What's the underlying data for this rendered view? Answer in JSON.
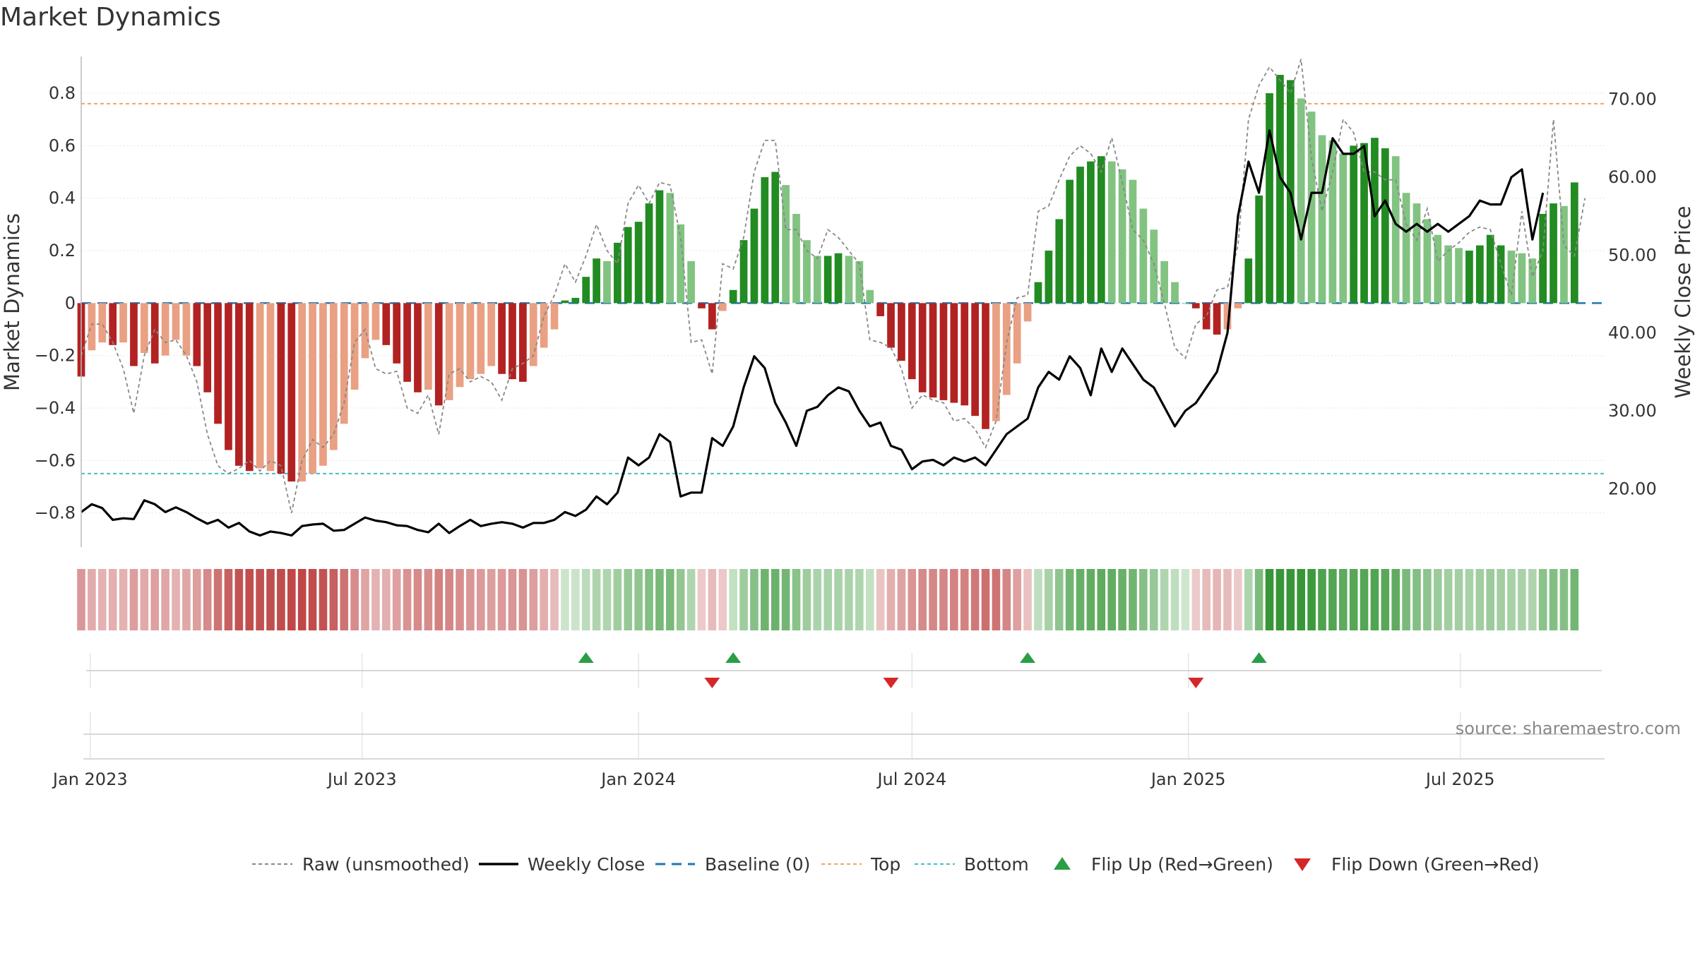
{
  "title": "Market Dynamics",
  "source": "source: sharemaestro.com",
  "colors": {
    "strong_red": "#b22222",
    "light_red": "#e9a083",
    "strong_green": "#228b22",
    "light_green": "#82c382",
    "price_line": "#000000",
    "raw_line": "#888888",
    "baseline": "#1f77b4",
    "top": "#f4a460",
    "bottom": "#40c0c0",
    "flip_up": "#2a9d45",
    "flip_down": "#d62728"
  },
  "legend": [
    {
      "key": "raw",
      "label": "Raw (unsmoothed)"
    },
    {
      "key": "close",
      "label": "Weekly Close"
    },
    {
      "key": "baseline",
      "label": "Baseline (0)"
    },
    {
      "key": "top",
      "label": "Top"
    },
    {
      "key": "bottom",
      "label": "Bottom"
    },
    {
      "key": "flip_up",
      "label": "Flip Up (Red→Green)"
    },
    {
      "key": "flip_down",
      "label": "Flip Down (Green→Red)"
    }
  ],
  "chart_data": {
    "type": "bar",
    "title": "Market Dynamics",
    "ylabel": "Market Dynamics",
    "y2label": "Weekly Close Price",
    "ylim": [
      -0.93,
      0.94
    ],
    "y2lim": [
      12.5,
      75.5
    ],
    "x_start": "2022-12-26",
    "x_interval": "weekly",
    "x_tick_labels": [
      "Jan 2023",
      "Jul 2023",
      "Jan 2024",
      "Jul 2024",
      "Jan 2025",
      "Jul 2025"
    ],
    "x_tick_dates": [
      "2023-01-01",
      "2023-07-01",
      "2024-01-01",
      "2024-07-01",
      "2025-01-01",
      "2025-07-01"
    ],
    "y_tick_labels": [
      "−0.8",
      "−0.6",
      "−0.4",
      "−0.2",
      "0",
      "0.2",
      "0.4",
      "0.6",
      "0.8"
    ],
    "y_ticks": [
      -0.8,
      -0.6,
      -0.4,
      -0.2,
      0,
      0.2,
      0.4,
      0.6,
      0.8
    ],
    "y2_tick_labels": [
      "20.00",
      "30.00",
      "40.00",
      "50.00",
      "60.00",
      "70.00"
    ],
    "y2_ticks": [
      20,
      30,
      40,
      50,
      60,
      70
    ],
    "top_level": 0.76,
    "bottom_level": -0.65,
    "grid": true,
    "legend_position": "bottom",
    "series": [
      {
        "name": "Market Dynamics",
        "kind": "bar",
        "values": [
          -0.28,
          -0.18,
          -0.15,
          -0.16,
          -0.15,
          -0.24,
          -0.19,
          -0.23,
          -0.2,
          -0.14,
          -0.2,
          -0.24,
          -0.34,
          -0.46,
          -0.56,
          -0.62,
          -0.64,
          -0.63,
          -0.64,
          -0.65,
          -0.68,
          -0.68,
          -0.65,
          -0.62,
          -0.56,
          -0.46,
          -0.33,
          -0.21,
          -0.14,
          -0.16,
          -0.23,
          -0.3,
          -0.34,
          -0.33,
          -0.39,
          -0.37,
          -0.32,
          -0.29,
          -0.27,
          -0.24,
          -0.27,
          -0.29,
          -0.3,
          -0.24,
          -0.17,
          -0.1,
          0.01,
          0.02,
          0.1,
          0.17,
          0.16,
          0.23,
          0.29,
          0.31,
          0.38,
          0.43,
          0.42,
          0.3,
          0.16,
          -0.02,
          -0.1,
          -0.03,
          0.05,
          0.24,
          0.36,
          0.48,
          0.5,
          0.45,
          0.34,
          0.24,
          0.18,
          0.18,
          0.19,
          0.18,
          0.16,
          0.05,
          -0.05,
          -0.17,
          -0.22,
          -0.29,
          -0.34,
          -0.36,
          -0.37,
          -0.38,
          -0.39,
          -0.43,
          -0.48,
          -0.45,
          -0.35,
          -0.23,
          -0.07,
          0.08,
          0.2,
          0.32,
          0.47,
          0.52,
          0.54,
          0.56,
          0.54,
          0.51,
          0.47,
          0.36,
          0.28,
          0.16,
          0.08,
          0.0,
          -0.02,
          -0.1,
          -0.12,
          -0.1,
          -0.02,
          0.17,
          0.41,
          0.8,
          0.87,
          0.85,
          0.78,
          0.73,
          0.64,
          0.62,
          0.57,
          0.6,
          0.61,
          0.63,
          0.59,
          0.56,
          0.42,
          0.38,
          0.32,
          0.26,
          0.22,
          0.21,
          0.2,
          0.22,
          0.26,
          0.22,
          0.2,
          0.19,
          0.17,
          0.34,
          0.38,
          0.37,
          0.46
        ],
        "strength": [
          1,
          0,
          0,
          1,
          0,
          1,
          0,
          1,
          0,
          0,
          0,
          1,
          1,
          1,
          1,
          1,
          1,
          0,
          0,
          1,
          1,
          0,
          0,
          0,
          0,
          0,
          0,
          0,
          0,
          1,
          1,
          1,
          1,
          0,
          1,
          0,
          0,
          0,
          0,
          0,
          1,
          1,
          1,
          0,
          0,
          0,
          1,
          1,
          1,
          1,
          0,
          1,
          1,
          1,
          1,
          1,
          0,
          0,
          0,
          1,
          1,
          0,
          1,
          1,
          1,
          1,
          1,
          0,
          0,
          0,
          0,
          1,
          1,
          0,
          0,
          0,
          1,
          1,
          1,
          1,
          1,
          1,
          1,
          1,
          1,
          1,
          1,
          0,
          0,
          0,
          0,
          1,
          1,
          1,
          1,
          1,
          1,
          1,
          0,
          0,
          0,
          0,
          0,
          0,
          0,
          0,
          1,
          1,
          1,
          0,
          0,
          1,
          1,
          1,
          1,
          1,
          0,
          0,
          0,
          0,
          0,
          1,
          1,
          1,
          1,
          0,
          0,
          0,
          0,
          0,
          0,
          0,
          1,
          1,
          1,
          1,
          0,
          0,
          0,
          1,
          1,
          0,
          1
        ]
      },
      {
        "name": "Raw (unsmoothed)",
        "kind": "line",
        "values": [
          -0.2,
          -0.08,
          -0.08,
          -0.15,
          -0.25,
          -0.42,
          -0.2,
          -0.1,
          -0.15,
          -0.14,
          -0.2,
          -0.3,
          -0.5,
          -0.62,
          -0.65,
          -0.63,
          -0.6,
          -0.64,
          -0.6,
          -0.62,
          -0.8,
          -0.6,
          -0.52,
          -0.55,
          -0.5,
          -0.38,
          -0.15,
          -0.1,
          -0.25,
          -0.27,
          -0.26,
          -0.4,
          -0.42,
          -0.35,
          -0.5,
          -0.27,
          -0.25,
          -0.3,
          -0.28,
          -0.3,
          -0.37,
          -0.25,
          -0.23,
          -0.2,
          -0.05,
          0.03,
          0.15,
          0.08,
          0.18,
          0.3,
          0.2,
          0.15,
          0.38,
          0.45,
          0.38,
          0.46,
          0.45,
          0.25,
          -0.15,
          -0.14,
          -0.27,
          0.15,
          0.13,
          0.25,
          0.5,
          0.62,
          0.62,
          0.28,
          0.28,
          0.2,
          0.17,
          0.28,
          0.25,
          0.2,
          0.15,
          -0.14,
          -0.15,
          -0.17,
          -0.25,
          -0.4,
          -0.35,
          -0.37,
          -0.38,
          -0.45,
          -0.44,
          -0.48,
          -0.55,
          -0.45,
          -0.15,
          0.02,
          0.03,
          0.35,
          0.37,
          0.47,
          0.56,
          0.6,
          0.57,
          0.5,
          0.63,
          0.46,
          0.28,
          0.24,
          0.15,
          0.0,
          -0.17,
          -0.21,
          -0.08,
          -0.05,
          0.05,
          0.06,
          0.22,
          0.7,
          0.83,
          0.9,
          0.85,
          0.8,
          0.93,
          0.55,
          0.35,
          0.5,
          0.7,
          0.65,
          0.5,
          0.5,
          0.47,
          0.47,
          0.3,
          0.24,
          0.36,
          0.16,
          0.2,
          0.23,
          0.27,
          0.29,
          0.28,
          0.15,
          0.03,
          0.35,
          0.1,
          0.2,
          0.7,
          0.22,
          0.18,
          0.4
        ]
      },
      {
        "name": "Weekly Close",
        "kind": "line",
        "axis": "y2",
        "values": [
          17.0,
          18.0,
          17.5,
          16.0,
          16.2,
          16.1,
          18.5,
          18.0,
          17.0,
          17.6,
          17.0,
          16.2,
          15.5,
          16.0,
          15.0,
          15.6,
          14.5,
          14.0,
          14.5,
          14.3,
          14.0,
          15.2,
          15.4,
          15.5,
          14.6,
          14.7,
          15.5,
          16.3,
          15.9,
          15.7,
          15.3,
          15.2,
          14.7,
          14.4,
          15.5,
          14.3,
          15.2,
          16.0,
          15.2,
          15.5,
          15.7,
          15.5,
          15.0,
          15.6,
          15.6,
          16.0,
          17.0,
          16.5,
          17.3,
          19.0,
          18.0,
          19.5,
          24.0,
          23.0,
          24.0,
          27.0,
          26.0,
          19.0,
          19.5,
          19.5,
          26.5,
          25.5,
          28.0,
          33.0,
          37.0,
          35.5,
          31.0,
          28.5,
          25.5,
          30.0,
          30.5,
          32.0,
          33.0,
          32.5,
          30.0,
          28.0,
          28.5,
          25.5,
          25.0,
          22.5,
          23.5,
          23.7,
          23.0,
          24.0,
          23.5,
          24.0,
          23.0,
          25.0,
          27.0,
          28.0,
          29.0,
          33.0,
          35.0,
          34.0,
          37.0,
          35.5,
          32.0,
          38.0,
          35.0,
          38.0,
          36.0,
          34.0,
          33.0,
          30.5,
          28.0,
          30.0,
          31.0,
          33.0,
          35.0,
          40.0,
          55.0,
          62.0,
          58.0,
          66.0,
          60.0,
          58.0,
          52.0,
          58.0,
          58.0,
          65.0,
          63.0,
          63.0,
          64.0,
          55.0,
          57.0,
          54.0,
          53.0,
          54.0,
          53.0,
          54.0,
          53.0,
          54.0,
          55.0,
          57.0,
          56.5,
          56.5,
          60.0,
          61.0,
          52.0,
          58.0
        ]
      }
    ],
    "regime_strip": [
      -0.28,
      -0.18,
      -0.15,
      -0.16,
      -0.15,
      -0.24,
      -0.19,
      -0.23,
      -0.2,
      -0.14,
      -0.2,
      -0.24,
      -0.34,
      -0.46,
      -0.56,
      -0.62,
      -0.64,
      -0.63,
      -0.64,
      -0.65,
      -0.68,
      -0.68,
      -0.65,
      -0.62,
      -0.56,
      -0.46,
      -0.33,
      -0.21,
      -0.14,
      -0.16,
      -0.23,
      -0.3,
      -0.34,
      -0.33,
      -0.39,
      -0.37,
      -0.32,
      -0.29,
      -0.27,
      -0.24,
      -0.27,
      -0.29,
      -0.3,
      -0.24,
      -0.17,
      -0.1,
      0.01,
      0.02,
      0.1,
      0.17,
      0.16,
      0.23,
      0.29,
      0.31,
      0.38,
      0.43,
      0.42,
      0.3,
      0.16,
      -0.02,
      -0.1,
      -0.03,
      0.05,
      0.24,
      0.36,
      0.48,
      0.5,
      0.45,
      0.34,
      0.24,
      0.18,
      0.18,
      0.19,
      0.18,
      0.16,
      0.05,
      -0.05,
      -0.17,
      -0.22,
      -0.29,
      -0.34,
      -0.36,
      -0.37,
      -0.38,
      -0.39,
      -0.43,
      -0.48,
      -0.45,
      -0.35,
      -0.23,
      -0.07,
      0.08,
      0.2,
      0.32,
      0.47,
      0.52,
      0.54,
      0.56,
      0.54,
      0.51,
      0.47,
      0.36,
      0.28,
      0.16,
      0.08,
      0.0,
      -0.02,
      -0.1,
      -0.12,
      -0.1,
      -0.02,
      0.17,
      0.41,
      0.8,
      0.87,
      0.85,
      0.78,
      0.73,
      0.64,
      0.62,
      0.57,
      0.6,
      0.61,
      0.63,
      0.59,
      0.56,
      0.42,
      0.38,
      0.32,
      0.26,
      0.22,
      0.21,
      0.2,
      0.22,
      0.26,
      0.22,
      0.2,
      0.19,
      0.17,
      0.34,
      0.38,
      0.37,
      0.46
    ],
    "flips": [
      {
        "type": "up",
        "date": "2023-11-27"
      },
      {
        "type": "down",
        "date": "2024-02-19"
      },
      {
        "type": "up",
        "date": "2024-03-04"
      },
      {
        "type": "down",
        "date": "2024-06-17"
      },
      {
        "type": "up",
        "date": "2024-09-16"
      },
      {
        "type": "down",
        "date": "2025-01-06"
      },
      {
        "type": "up",
        "date": "2025-02-17"
      }
    ]
  }
}
